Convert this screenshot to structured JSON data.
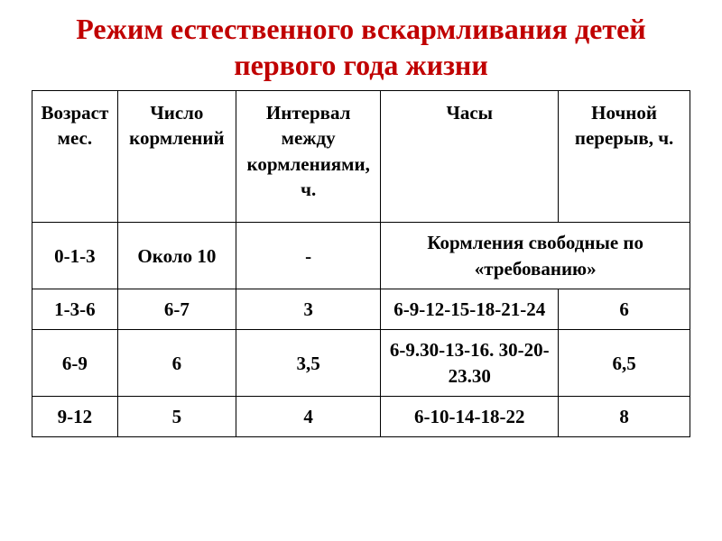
{
  "title": "Режим естественного вскармливания детей первого года жизни",
  "table": {
    "columns": [
      "Возраст мес.",
      "Число кормлений",
      "Интервал между кормлениями, ч.",
      "Часы",
      "Ночной перерыв, ч."
    ],
    "rows": [
      {
        "age": "0-1-3",
        "feedings": "Около 10",
        "interval": "-",
        "hours_merged": "Кормления свободные по «требованию»"
      },
      {
        "age": "1-3-6",
        "feedings": "6-7",
        "interval": "3",
        "hours": "6-9-12-15-18-21-24",
        "night_break": "6"
      },
      {
        "age": "6-9",
        "feedings": "6",
        "interval": "3,5",
        "hours": "6-9.30-13-16. 30-20-23.30",
        "night_break": "6,5"
      },
      {
        "age": "9-12",
        "feedings": "5",
        "interval": "4",
        "hours": "6-10-14-18-22",
        "night_break": "8"
      }
    ],
    "border_color": "#000000",
    "title_color": "#c00000",
    "background_color": "#ffffff",
    "font_family": "Times New Roman",
    "title_fontsize": 32,
    "cell_fontsize": 21
  }
}
